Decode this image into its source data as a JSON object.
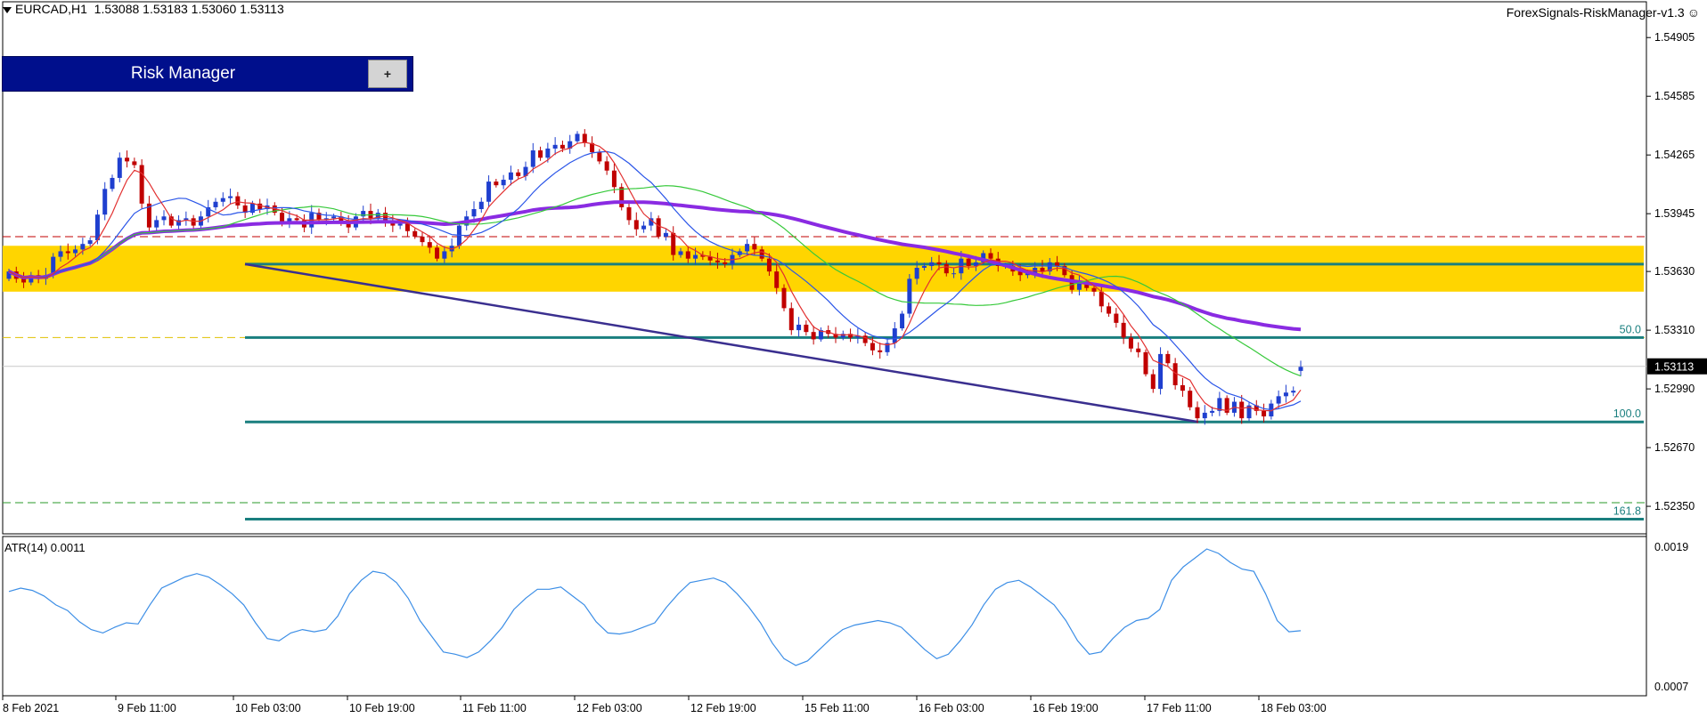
{
  "header": {
    "symbol_line": "EURCAD,H1  1.53088 1.53183 1.53060 1.53113",
    "ea_name": "ForexSignals-RiskManager-v1.3"
  },
  "risk_manager": {
    "title": "Risk Manager",
    "plus_label": "+"
  },
  "atr": {
    "label": "ATR(14) 0.0011",
    "scale_top": "0.0019",
    "scale_bottom": "0.0007"
  },
  "colors": {
    "bull": "#1f3fcf",
    "bear": "#c00000",
    "zone": "#ffd500",
    "fib": "#1a7f7f",
    "ma_slow": "#8a2be2",
    "ma_fast": "#e23030",
    "ma_mid": "#2a55e8",
    "ma_green": "#36c93a",
    "atr": "#3c8ee6",
    "trend": "#3a2f8f"
  },
  "chart_data": {
    "type": "candlestick",
    "symbol": "EURCAD",
    "timeframe": "H1",
    "ohlc_current": {
      "open": 1.53088,
      "high": 1.53183,
      "low": 1.5306,
      "close": 1.53113
    },
    "price_ticks": [
      "1.54905",
      "1.54585",
      "1.54265",
      "1.53945",
      "1.53630",
      "1.53310",
      "1.52990",
      "1.52670",
      "1.52350"
    ],
    "last_price_label": "1.53113",
    "time_ticks": [
      "8 Feb 2021",
      "9 Feb 11:00",
      "10 Feb 03:00",
      "10 Feb 19:00",
      "11 Feb 11:00",
      "12 Feb 03:00",
      "12 Feb 19:00",
      "15 Feb 11:00",
      "16 Feb 03:00",
      "16 Feb 19:00",
      "17 Feb 11:00",
      "18 Feb 03:00"
    ],
    "ylim": [
      1.522,
      1.551
    ],
    "supply_zone": [
      1.5352,
      1.5377
    ],
    "fibonacci": [
      {
        "label": "50.0",
        "price": 1.5327
      },
      {
        "label": "100.0",
        "price": 1.5281
      },
      {
        "label": "161.8",
        "price": 1.5228
      }
    ],
    "fib_base_line": 1.5367,
    "dashed_levels": [
      {
        "price": 1.5382,
        "color": "#c00000"
      },
      {
        "price": 1.5327,
        "color": "#e0c000"
      },
      {
        "price": 1.5237,
        "color": "#2a9a2a"
      }
    ],
    "trendline": [
      [
        1.5367,
        1.5281
      ]
    ],
    "closes": [
      1.5363,
      1.5359,
      1.5357,
      1.5361,
      1.5359,
      1.5361,
      1.5371,
      1.5374,
      1.5373,
      1.5375,
      1.5378,
      1.538,
      1.5394,
      1.5408,
      1.5414,
      1.5425,
      1.5423,
      1.5421,
      1.54,
      1.5387,
      1.5391,
      1.5393,
      1.5388,
      1.5391,
      1.5392,
      1.5388,
      1.5393,
      1.5398,
      1.5401,
      1.5403,
      1.5404,
      1.5399,
      1.5395,
      1.54,
      1.5397,
      1.5399,
      1.5395,
      1.539,
      1.5392,
      1.5391,
      1.5387,
      1.5395,
      1.5391,
      1.5392,
      1.5393,
      1.539,
      1.5387,
      1.5393,
      1.5396,
      1.5392,
      1.5395,
      1.539,
      1.5388,
      1.5389,
      1.5385,
      1.5382,
      1.5379,
      1.5376,
      1.537,
      1.5374,
      1.5377,
      1.5388,
      1.5393,
      1.5397,
      1.5401,
      1.5412,
      1.541,
      1.5413,
      1.5417,
      1.5415,
      1.542,
      1.5429,
      1.5425,
      1.543,
      1.5432,
      1.543,
      1.5434,
      1.5438,
      1.5433,
      1.5428,
      1.5423,
      1.5418,
      1.5409,
      1.5398,
      1.5391,
      1.5386,
      1.5388,
      1.5392,
      1.5382,
      1.5384,
      1.5372,
      1.5374,
      1.537,
      1.5372,
      1.5371,
      1.5369,
      1.5368,
      1.5367,
      1.5372,
      1.5374,
      1.5378,
      1.5375,
      1.537,
      1.5363,
      1.5354,
      1.5343,
      1.5331,
      1.5334,
      1.533,
      1.5326,
      1.5331,
      1.5329,
      1.5327,
      1.5329,
      1.5327,
      1.5328,
      1.5324,
      1.532,
      1.5319,
      1.5324,
      1.5332,
      1.534,
      1.5359,
      1.5365,
      1.5366,
      1.5368,
      1.5367,
      1.5362,
      1.5362,
      1.537,
      1.5366,
      1.5368,
      1.5373,
      1.537,
      1.5366,
      1.5366,
      1.5363,
      1.5361,
      1.5362,
      1.5365,
      1.5363,
      1.5368,
      1.5366,
      1.5361,
      1.5353,
      1.5357,
      1.5354,
      1.5352,
      1.5344,
      1.534,
      1.5335,
      1.5327,
      1.5321,
      1.5319,
      1.5307,
      1.5299,
      1.5318,
      1.5313,
      1.5301,
      1.5298,
      1.5289,
      1.5283,
      1.5286,
      1.5287,
      1.5294,
      1.5286,
      1.5292,
      1.5283,
      1.529,
      1.5287,
      1.5284,
      1.5291,
      1.5295,
      1.5297,
      1.5298,
      1.5311
    ],
    "atr_values": [
      0.00152,
      0.00155,
      0.00153,
      0.00148,
      0.0014,
      0.00135,
      0.00125,
      0.00118,
      0.00115,
      0.0012,
      0.00124,
      0.00123,
      0.0014,
      0.00155,
      0.0016,
      0.00165,
      0.00168,
      0.00165,
      0.00158,
      0.0015,
      0.0014,
      0.00124,
      0.0011,
      0.00108,
      0.00115,
      0.00118,
      0.00116,
      0.00118,
      0.0013,
      0.0015,
      0.00162,
      0.0017,
      0.00168,
      0.0016,
      0.00146,
      0.00126,
      0.00112,
      0.00098,
      0.00096,
      0.00093,
      0.00098,
      0.00108,
      0.0012,
      0.00136,
      0.00146,
      0.00154,
      0.00154,
      0.00156,
      0.00148,
      0.0014,
      0.00125,
      0.00115,
      0.00114,
      0.00116,
      0.0012,
      0.00124,
      0.00138,
      0.0015,
      0.0016,
      0.00162,
      0.00164,
      0.0016,
      0.0015,
      0.00138,
      0.00124,
      0.00106,
      0.00092,
      0.00086,
      0.0009,
      0.001,
      0.0011,
      0.00118,
      0.00122,
      0.00124,
      0.00126,
      0.00124,
      0.0012,
      0.0011,
      0.001,
      0.00092,
      0.00096,
      0.00108,
      0.00122,
      0.0014,
      0.00154,
      0.0016,
      0.00162,
      0.00156,
      0.00148,
      0.0014,
      0.00126,
      0.00108,
      0.00096,
      0.00098,
      0.0011,
      0.0012,
      0.00126,
      0.00128,
      0.00136,
      0.00162,
      0.00174,
      0.00182,
      0.0019,
      0.00186,
      0.00178,
      0.00172,
      0.0017,
      0.0015,
      0.00126,
      0.00116,
      0.00117
    ]
  }
}
